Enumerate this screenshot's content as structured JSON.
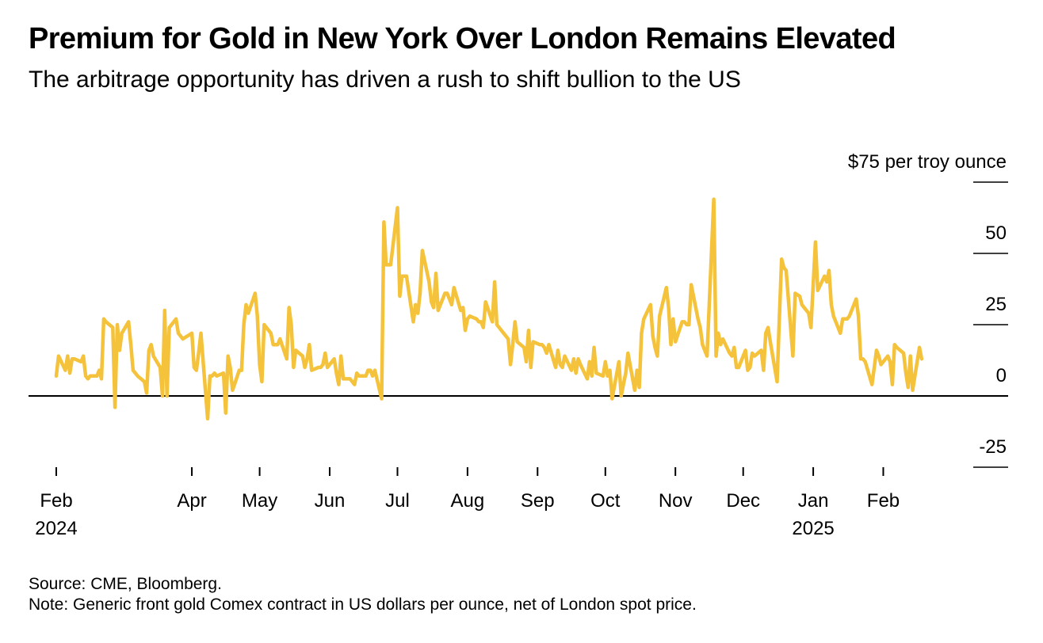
{
  "title": "Premium for Gold in New York Over London Remains Elevated",
  "subtitle": "The arbitrage opportunity has driven a rush to shift bullion to the US",
  "source": "Source: CME, Bloomberg.",
  "note": "Note: Generic front gold Comex contract in US dollars per ounce, net of London spot price.",
  "colors": {
    "line": "#f4c23b",
    "axis": "#000000"
  },
  "chart_data": {
    "type": "line",
    "title": "Premium for Gold in New York Over London Remains Elevated",
    "ylabel": "$75 per troy ounce",
    "ylim": [
      -25,
      75
    ],
    "yticks": [
      {
        "value": 75,
        "label": "$75 per troy ounce"
      },
      {
        "value": 50,
        "label": "50"
      },
      {
        "value": 25,
        "label": "25"
      },
      {
        "value": 0,
        "label": "0"
      },
      {
        "value": -25,
        "label": "-25"
      }
    ],
    "xlim": [
      "2024-02-01",
      "2025-03-03"
    ],
    "xticks": [
      {
        "date": "2024-02-01",
        "label": "Feb",
        "year": "2024"
      },
      {
        "date": "2024-04-01",
        "label": "Apr"
      },
      {
        "date": "2024-05-01",
        "label": "May"
      },
      {
        "date": "2024-06-01",
        "label": "Jun"
      },
      {
        "date": "2024-07-01",
        "label": "Jul"
      },
      {
        "date": "2024-08-01",
        "label": "Aug"
      },
      {
        "date": "2024-09-01",
        "label": "Sep"
      },
      {
        "date": "2024-10-01",
        "label": "Oct"
      },
      {
        "date": "2024-11-01",
        "label": "Nov"
      },
      {
        "date": "2024-12-01",
        "label": "Dec"
      },
      {
        "date": "2025-01-01",
        "label": "Jan",
        "year": "2025"
      },
      {
        "date": "2025-02-01",
        "label": "Feb"
      }
    ],
    "grid": false,
    "series": [
      {
        "points": [
          [
            "2024-02-01",
            7
          ],
          [
            "2024-02-02",
            14
          ],
          [
            "2024-02-05",
            9
          ],
          [
            "2024-02-06",
            14
          ],
          [
            "2024-02-07",
            8
          ],
          [
            "2024-02-08",
            13
          ],
          [
            "2024-02-09",
            13
          ],
          [
            "2024-02-12",
            12
          ],
          [
            "2024-02-13",
            14
          ],
          [
            "2024-02-14",
            7
          ],
          [
            "2024-02-15",
            6
          ],
          [
            "2024-02-16",
            7
          ],
          [
            "2024-02-19",
            7
          ],
          [
            "2024-02-20",
            9
          ],
          [
            "2024-02-21",
            6
          ],
          [
            "2024-02-22",
            27
          ],
          [
            "2024-02-23",
            26
          ],
          [
            "2024-02-26",
            24
          ],
          [
            "2024-02-27",
            -4
          ],
          [
            "2024-02-28",
            25
          ],
          [
            "2024-02-29",
            16
          ],
          [
            "2024-03-01",
            22
          ],
          [
            "2024-03-04",
            26
          ],
          [
            "2024-03-05",
            18
          ],
          [
            "2024-03-06",
            9
          ],
          [
            "2024-03-07",
            8
          ],
          [
            "2024-03-08",
            7
          ],
          [
            "2024-03-11",
            5
          ],
          [
            "2024-03-12",
            1
          ],
          [
            "2024-03-13",
            16
          ],
          [
            "2024-03-14",
            18
          ],
          [
            "2024-03-15",
            14
          ],
          [
            "2024-03-18",
            10
          ],
          [
            "2024-03-19",
            0
          ],
          [
            "2024-03-20",
            30
          ],
          [
            "2024-03-21",
            0
          ],
          [
            "2024-03-22",
            24
          ],
          [
            "2024-03-25",
            27
          ],
          [
            "2024-03-26",
            22
          ],
          [
            "2024-03-27",
            21
          ],
          [
            "2024-03-28",
            20
          ],
          [
            "2024-04-01",
            22
          ],
          [
            "2024-04-02",
            10
          ],
          [
            "2024-04-03",
            9
          ],
          [
            "2024-04-04",
            15
          ],
          [
            "2024-04-05",
            22
          ],
          [
            "2024-04-08",
            -8
          ],
          [
            "2024-04-09",
            7
          ],
          [
            "2024-04-10",
            7
          ],
          [
            "2024-04-11",
            8
          ],
          [
            "2024-04-12",
            7
          ],
          [
            "2024-04-15",
            8
          ],
          [
            "2024-04-16",
            -6
          ],
          [
            "2024-04-17",
            14
          ],
          [
            "2024-04-18",
            10
          ],
          [
            "2024-04-19",
            2
          ],
          [
            "2024-04-22",
            9
          ],
          [
            "2024-04-23",
            9
          ],
          [
            "2024-04-24",
            25
          ],
          [
            "2024-04-25",
            32
          ],
          [
            "2024-04-26",
            29
          ],
          [
            "2024-04-29",
            36
          ],
          [
            "2024-04-30",
            28
          ],
          [
            "2024-05-01",
            11
          ],
          [
            "2024-05-02",
            5
          ],
          [
            "2024-05-03",
            25
          ],
          [
            "2024-05-06",
            22
          ],
          [
            "2024-05-07",
            18
          ],
          [
            "2024-05-08",
            18
          ],
          [
            "2024-05-09",
            18
          ],
          [
            "2024-05-10",
            20
          ],
          [
            "2024-05-13",
            13
          ],
          [
            "2024-05-14",
            31
          ],
          [
            "2024-05-15",
            25
          ],
          [
            "2024-05-16",
            10
          ],
          [
            "2024-05-17",
            16
          ],
          [
            "2024-05-20",
            14
          ],
          [
            "2024-05-21",
            10
          ],
          [
            "2024-05-22",
            13
          ],
          [
            "2024-05-23",
            18
          ],
          [
            "2024-05-24",
            9
          ],
          [
            "2024-05-27",
            10
          ],
          [
            "2024-05-28",
            10
          ],
          [
            "2024-05-29",
            11
          ],
          [
            "2024-05-30",
            15
          ],
          [
            "2024-05-31",
            10
          ],
          [
            "2024-06-03",
            13
          ],
          [
            "2024-06-04",
            8
          ],
          [
            "2024-06-05",
            4
          ],
          [
            "2024-06-06",
            14
          ],
          [
            "2024-06-07",
            6
          ],
          [
            "2024-06-10",
            6
          ],
          [
            "2024-06-11",
            5
          ],
          [
            "2024-06-12",
            4
          ],
          [
            "2024-06-13",
            8
          ],
          [
            "2024-06-14",
            7
          ],
          [
            "2024-06-17",
            7
          ],
          [
            "2024-06-18",
            9
          ],
          [
            "2024-06-19",
            9
          ],
          [
            "2024-06-20",
            7
          ],
          [
            "2024-06-21",
            9
          ],
          [
            "2024-06-24",
            -1
          ],
          [
            "2024-06-25",
            61
          ],
          [
            "2024-06-26",
            46
          ],
          [
            "2024-06-27",
            46
          ],
          [
            "2024-06-28",
            46
          ],
          [
            "2024-07-01",
            66
          ],
          [
            "2024-07-02",
            35
          ],
          [
            "2024-07-03",
            42
          ],
          [
            "2024-07-04",
            42
          ],
          [
            "2024-07-05",
            42
          ],
          [
            "2024-07-08",
            26
          ],
          [
            "2024-07-09",
            32
          ],
          [
            "2024-07-10",
            29
          ],
          [
            "2024-07-11",
            36
          ],
          [
            "2024-07-12",
            51
          ],
          [
            "2024-07-15",
            40
          ],
          [
            "2024-07-16",
            33
          ],
          [
            "2024-07-17",
            31
          ],
          [
            "2024-07-18",
            43
          ],
          [
            "2024-07-19",
            30
          ],
          [
            "2024-07-22",
            36
          ],
          [
            "2024-07-23",
            36
          ],
          [
            "2024-07-24",
            34
          ],
          [
            "2024-07-25",
            32
          ],
          [
            "2024-07-26",
            38
          ],
          [
            "2024-07-29",
            30
          ],
          [
            "2024-07-30",
            31
          ],
          [
            "2024-07-31",
            23
          ],
          [
            "2024-08-01",
            27
          ],
          [
            "2024-08-02",
            28
          ],
          [
            "2024-08-05",
            27
          ],
          [
            "2024-08-06",
            26
          ],
          [
            "2024-08-07",
            26
          ],
          [
            "2024-08-08",
            24
          ],
          [
            "2024-08-09",
            33
          ],
          [
            "2024-08-12",
            26
          ],
          [
            "2024-08-13",
            40
          ],
          [
            "2024-08-14",
            25
          ],
          [
            "2024-08-15",
            24
          ],
          [
            "2024-08-16",
            23
          ],
          [
            "2024-08-19",
            20
          ],
          [
            "2024-08-20",
            11
          ],
          [
            "2024-08-21",
            18
          ],
          [
            "2024-08-22",
            26
          ],
          [
            "2024-08-23",
            19
          ],
          [
            "2024-08-26",
            17
          ],
          [
            "2024-08-27",
            12
          ],
          [
            "2024-08-28",
            23
          ],
          [
            "2024-08-29",
            10
          ],
          [
            "2024-08-30",
            19
          ],
          [
            "2024-09-02",
            18
          ],
          [
            "2024-09-03",
            18
          ],
          [
            "2024-09-04",
            17
          ],
          [
            "2024-09-05",
            15
          ],
          [
            "2024-09-06",
            18
          ],
          [
            "2024-09-09",
            10
          ],
          [
            "2024-09-10",
            16
          ],
          [
            "2024-09-11",
            11
          ],
          [
            "2024-09-12",
            10
          ],
          [
            "2024-09-13",
            14
          ],
          [
            "2024-09-16",
            9
          ],
          [
            "2024-09-17",
            13
          ],
          [
            "2024-09-18",
            8
          ],
          [
            "2024-09-19",
            13
          ],
          [
            "2024-09-20",
            11
          ],
          [
            "2024-09-23",
            6
          ],
          [
            "2024-09-24",
            12
          ],
          [
            "2024-09-25",
            7
          ],
          [
            "2024-09-26",
            17
          ],
          [
            "2024-09-27",
            8
          ],
          [
            "2024-09-30",
            7
          ],
          [
            "2024-10-01",
            12
          ],
          [
            "2024-10-02",
            7
          ],
          [
            "2024-10-03",
            9
          ],
          [
            "2024-10-04",
            -1
          ],
          [
            "2024-10-07",
            12
          ],
          [
            "2024-10-08",
            0
          ],
          [
            "2024-10-09",
            4
          ],
          [
            "2024-10-10",
            8
          ],
          [
            "2024-10-11",
            15
          ],
          [
            "2024-10-14",
            2
          ],
          [
            "2024-10-15",
            9
          ],
          [
            "2024-10-16",
            3
          ],
          [
            "2024-10-17",
            22
          ],
          [
            "2024-10-18",
            27
          ],
          [
            "2024-10-21",
            32
          ],
          [
            "2024-10-22",
            21
          ],
          [
            "2024-10-23",
            17
          ],
          [
            "2024-10-24",
            14
          ],
          [
            "2024-10-25",
            28
          ],
          [
            "2024-10-28",
            38
          ],
          [
            "2024-10-29",
            31
          ],
          [
            "2024-10-30",
            18
          ],
          [
            "2024-10-31",
            27
          ],
          [
            "2024-11-01",
            19
          ],
          [
            "2024-11-04",
            26
          ],
          [
            "2024-11-05",
            26
          ],
          [
            "2024-11-06",
            25
          ],
          [
            "2024-11-07",
            25
          ],
          [
            "2024-11-08",
            39
          ],
          [
            "2024-11-11",
            27
          ],
          [
            "2024-11-12",
            24
          ],
          [
            "2024-11-13",
            18
          ],
          [
            "2024-11-14",
            16
          ],
          [
            "2024-11-15",
            14
          ],
          [
            "2024-11-18",
            69
          ],
          [
            "2024-11-19",
            14
          ],
          [
            "2024-11-20",
            22
          ],
          [
            "2024-11-21",
            18
          ],
          [
            "2024-11-22",
            20
          ],
          [
            "2024-11-25",
            15
          ],
          [
            "2024-11-26",
            14
          ],
          [
            "2024-11-27",
            17
          ],
          [
            "2024-11-28",
            10
          ],
          [
            "2024-11-29",
            10
          ],
          [
            "2024-12-02",
            16
          ],
          [
            "2024-12-03",
            9
          ],
          [
            "2024-12-04",
            10
          ],
          [
            "2024-12-05",
            15
          ],
          [
            "2024-12-06",
            14
          ],
          [
            "2024-12-09",
            16
          ],
          [
            "2024-12-10",
            9
          ],
          [
            "2024-12-11",
            22
          ],
          [
            "2024-12-12",
            24
          ],
          [
            "2024-12-13",
            19
          ],
          [
            "2024-12-16",
            5
          ],
          [
            "2024-12-17",
            27
          ],
          [
            "2024-12-18",
            48
          ],
          [
            "2024-12-19",
            45
          ],
          [
            "2024-12-20",
            44
          ],
          [
            "2024-12-23",
            14
          ],
          [
            "2024-12-24",
            36
          ],
          [
            "2024-12-26",
            35
          ],
          [
            "2024-12-27",
            32
          ],
          [
            "2024-12-30",
            29
          ],
          [
            "2024-12-31",
            24
          ],
          [
            "2025-01-02",
            54
          ],
          [
            "2025-01-03",
            37
          ],
          [
            "2025-01-06",
            42
          ],
          [
            "2025-01-07",
            40
          ],
          [
            "2025-01-08",
            44
          ],
          [
            "2025-01-09",
            32
          ],
          [
            "2025-01-10",
            28
          ],
          [
            "2025-01-13",
            22
          ],
          [
            "2025-01-14",
            27
          ],
          [
            "2025-01-15",
            27
          ],
          [
            "2025-01-16",
            27
          ],
          [
            "2025-01-17",
            28
          ],
          [
            "2025-01-20",
            34
          ],
          [
            "2025-01-21",
            28
          ],
          [
            "2025-01-22",
            13
          ],
          [
            "2025-01-23",
            13
          ],
          [
            "2025-01-24",
            12
          ],
          [
            "2025-01-27",
            4
          ],
          [
            "2025-01-28",
            10
          ],
          [
            "2025-01-29",
            16
          ],
          [
            "2025-01-30",
            14
          ],
          [
            "2025-01-31",
            11
          ],
          [
            "2025-02-03",
            14
          ],
          [
            "2025-02-04",
            12
          ],
          [
            "2025-02-05",
            4
          ],
          [
            "2025-02-06",
            18
          ],
          [
            "2025-02-07",
            17
          ],
          [
            "2025-02-10",
            15
          ],
          [
            "2025-02-11",
            8
          ],
          [
            "2025-02-12",
            3
          ],
          [
            "2025-02-13",
            14
          ],
          [
            "2025-02-14",
            2
          ],
          [
            "2025-02-17",
            17
          ],
          [
            "2025-02-18",
            13
          ]
        ]
      }
    ]
  }
}
